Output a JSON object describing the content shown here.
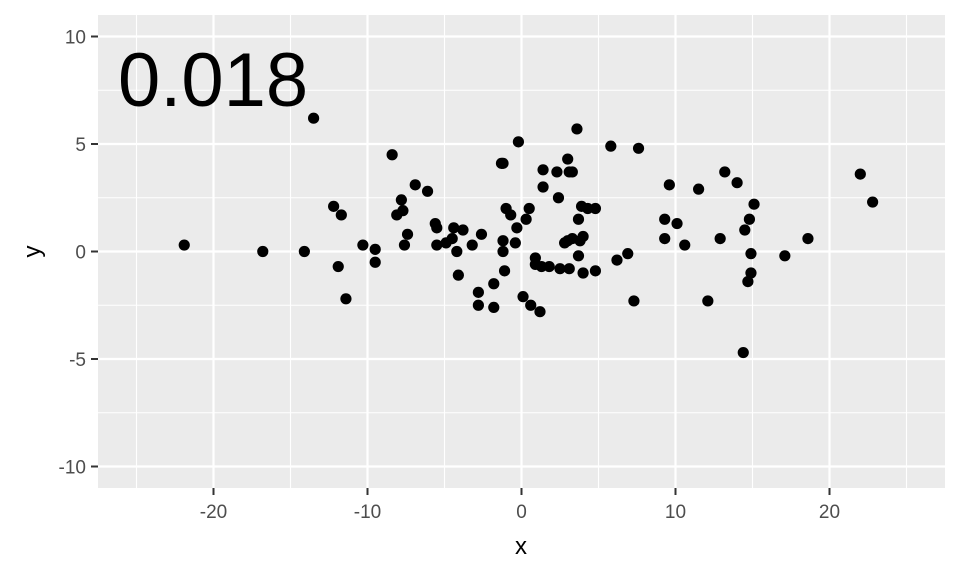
{
  "chart_data": {
    "type": "scatter",
    "title": "",
    "xlabel": "x",
    "ylabel": "y",
    "annotation": "0.018",
    "xlim": [
      -27.5,
      27.5
    ],
    "ylim": [
      -11,
      11
    ],
    "x_ticks": [
      -20,
      -10,
      0,
      10,
      20
    ],
    "x_tick_labels": [
      "-20",
      "-10",
      "0",
      "10",
      "20"
    ],
    "y_ticks": [
      -10,
      -5,
      0,
      5,
      10
    ],
    "y_tick_labels": [
      "-10",
      "-5",
      "0",
      "5",
      "10"
    ],
    "grid": true,
    "panel_background": "#ebebeb",
    "point_color": "#000000",
    "points": [
      {
        "x": -21.9,
        "y": 0.3
      },
      {
        "x": -16.8,
        "y": 0.0
      },
      {
        "x": -14.1,
        "y": 0.0
      },
      {
        "x": -13.5,
        "y": 6.2
      },
      {
        "x": -12.2,
        "y": 2.1
      },
      {
        "x": -11.9,
        "y": -0.7
      },
      {
        "x": -11.7,
        "y": 1.7
      },
      {
        "x": -11.4,
        "y": -2.2
      },
      {
        "x": -10.3,
        "y": 0.3
      },
      {
        "x": -9.5,
        "y": 0.1
      },
      {
        "x": -9.5,
        "y": -0.5
      },
      {
        "x": -8.4,
        "y": 4.5
      },
      {
        "x": -8.1,
        "y": 1.7
      },
      {
        "x": -7.8,
        "y": 2.4
      },
      {
        "x": -7.7,
        "y": 1.9
      },
      {
        "x": -7.6,
        "y": 0.3
      },
      {
        "x": -7.4,
        "y": 0.8
      },
      {
        "x": -6.9,
        "y": 3.1
      },
      {
        "x": -6.1,
        "y": 2.8
      },
      {
        "x": -5.6,
        "y": 1.3
      },
      {
        "x": -5.5,
        "y": 1.1
      },
      {
        "x": -5.5,
        "y": 0.3
      },
      {
        "x": -4.9,
        "y": 0.4
      },
      {
        "x": -4.5,
        "y": 0.6
      },
      {
        "x": -4.4,
        "y": 1.1
      },
      {
        "x": -4.2,
        "y": 0.0
      },
      {
        "x": -4.1,
        "y": -1.1
      },
      {
        "x": -3.8,
        "y": 1.0
      },
      {
        "x": -3.2,
        "y": 0.3
      },
      {
        "x": -2.8,
        "y": -1.9
      },
      {
        "x": -2.8,
        "y": -2.5
      },
      {
        "x": -2.6,
        "y": 0.8
      },
      {
        "x": -1.8,
        "y": -1.5
      },
      {
        "x": -1.8,
        "y": -2.6
      },
      {
        "x": -1.3,
        "y": 4.1
      },
      {
        "x": -1.2,
        "y": 4.1
      },
      {
        "x": -1.2,
        "y": 0.5
      },
      {
        "x": -1.2,
        "y": 0.0
      },
      {
        "x": -1.1,
        "y": -0.9
      },
      {
        "x": -1.0,
        "y": 2.0
      },
      {
        "x": -0.7,
        "y": 1.7
      },
      {
        "x": -0.4,
        "y": 0.4
      },
      {
        "x": -0.3,
        "y": 1.1
      },
      {
        "x": -0.2,
        "y": 5.1
      },
      {
        "x": 0.1,
        "y": -2.1
      },
      {
        "x": 0.3,
        "y": 1.5
      },
      {
        "x": 0.5,
        "y": 2.0
      },
      {
        "x": 0.6,
        "y": -2.5
      },
      {
        "x": 0.9,
        "y": -0.3
      },
      {
        "x": 0.9,
        "y": -0.6
      },
      {
        "x": 1.2,
        "y": -2.8
      },
      {
        "x": 1.3,
        "y": -0.7
      },
      {
        "x": 1.4,
        "y": 3.0
      },
      {
        "x": 1.4,
        "y": 3.8
      },
      {
        "x": 1.8,
        "y": -0.7
      },
      {
        "x": 2.3,
        "y": 3.7
      },
      {
        "x": 2.4,
        "y": 2.5
      },
      {
        "x": 2.5,
        "y": -0.8
      },
      {
        "x": 2.8,
        "y": 0.4
      },
      {
        "x": 3.0,
        "y": 0.5
      },
      {
        "x": 3.0,
        "y": 4.3
      },
      {
        "x": 3.1,
        "y": 3.7
      },
      {
        "x": 3.1,
        "y": -0.8
      },
      {
        "x": 3.3,
        "y": 0.6
      },
      {
        "x": 3.3,
        "y": 3.7
      },
      {
        "x": 3.6,
        "y": 5.7
      },
      {
        "x": 3.7,
        "y": 1.5
      },
      {
        "x": 3.7,
        "y": -0.2
      },
      {
        "x": 3.8,
        "y": 0.5
      },
      {
        "x": 3.9,
        "y": 2.1
      },
      {
        "x": 4.0,
        "y": 0.7
      },
      {
        "x": 4.0,
        "y": -1.0
      },
      {
        "x": 4.3,
        "y": 2.0
      },
      {
        "x": 4.8,
        "y": 2.0
      },
      {
        "x": 4.8,
        "y": -0.9
      },
      {
        "x": 5.8,
        "y": 4.9
      },
      {
        "x": 6.2,
        "y": -0.4
      },
      {
        "x": 6.9,
        "y": -0.1
      },
      {
        "x": 7.3,
        "y": -2.3
      },
      {
        "x": 7.6,
        "y": 4.8
      },
      {
        "x": 9.3,
        "y": 1.5
      },
      {
        "x": 9.3,
        "y": 0.6
      },
      {
        "x": 9.6,
        "y": 3.1
      },
      {
        "x": 10.1,
        "y": 1.3
      },
      {
        "x": 10.6,
        "y": 0.3
      },
      {
        "x": 11.5,
        "y": 2.9
      },
      {
        "x": 12.1,
        "y": -2.3
      },
      {
        "x": 12.9,
        "y": 0.6
      },
      {
        "x": 13.2,
        "y": 3.7
      },
      {
        "x": 14.0,
        "y": 3.2
      },
      {
        "x": 14.4,
        "y": -4.7
      },
      {
        "x": 14.5,
        "y": 1.0
      },
      {
        "x": 14.7,
        "y": -1.4
      },
      {
        "x": 14.8,
        "y": 1.5
      },
      {
        "x": 14.9,
        "y": -0.1
      },
      {
        "x": 14.9,
        "y": -1.0
      },
      {
        "x": 15.1,
        "y": 2.2
      },
      {
        "x": 17.1,
        "y": -0.2
      },
      {
        "x": 18.6,
        "y": 0.6
      },
      {
        "x": 22.0,
        "y": 3.6
      },
      {
        "x": 22.8,
        "y": 2.3
      }
    ]
  }
}
